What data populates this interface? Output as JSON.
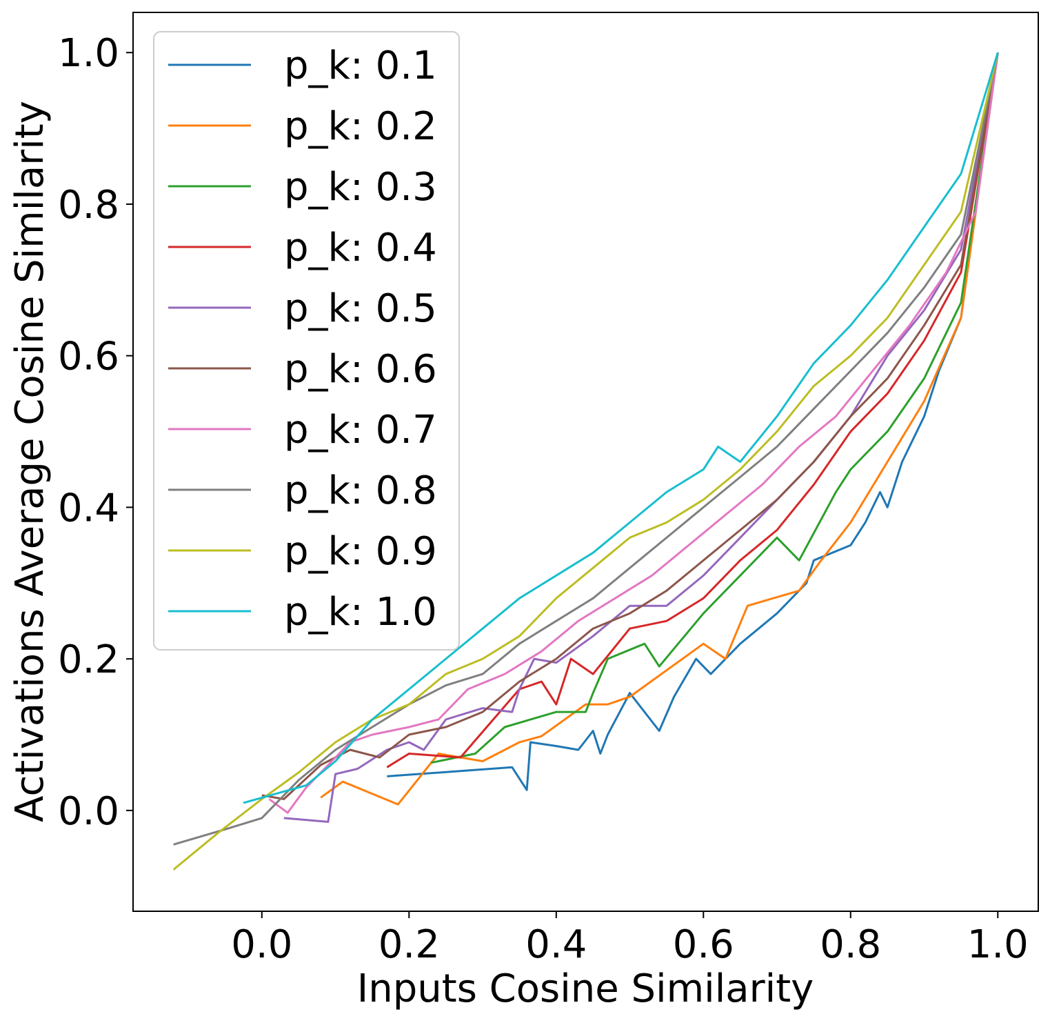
{
  "chart_data": {
    "type": "line",
    "title": "",
    "xlabel": "Inputs Cosine Similarity",
    "ylabel": "Activations Average Cosine Similarity",
    "xlim": [
      -0.175,
      1.055
    ],
    "ylim": [
      -0.133,
      1.053
    ],
    "xticks": [
      0.0,
      0.2,
      0.4,
      0.6,
      0.8,
      1.0
    ],
    "yticks": [
      0.0,
      0.2,
      0.4,
      0.6,
      0.8,
      1.0
    ],
    "xtick_labels": [
      "0.0",
      "0.2",
      "0.4",
      "0.6",
      "0.8",
      "1.0"
    ],
    "ytick_labels": [
      "0.0",
      "0.2",
      "0.4",
      "0.6",
      "0.8",
      "1.0"
    ],
    "grid": false,
    "legend_position": "top-left",
    "series": [
      {
        "name": "p_k: 0.1",
        "color": "#1f77b4",
        "x": [
          0.17,
          0.34,
          0.36,
          0.365,
          0.4,
          0.43,
          0.45,
          0.46,
          0.47,
          0.5,
          0.54,
          0.56,
          0.59,
          0.61,
          0.65,
          0.7,
          0.74,
          0.75,
          0.8,
          0.82,
          0.84,
          0.85,
          0.87,
          0.9,
          0.92,
          0.95,
          1.0
        ],
        "y": [
          0.045,
          0.057,
          0.027,
          0.09,
          0.085,
          0.08,
          0.105,
          0.075,
          0.1,
          0.155,
          0.105,
          0.15,
          0.2,
          0.18,
          0.22,
          0.26,
          0.3,
          0.33,
          0.35,
          0.38,
          0.42,
          0.4,
          0.46,
          0.52,
          0.58,
          0.65,
          1.0
        ]
      },
      {
        "name": "p_k: 0.2",
        "color": "#ff7f0e",
        "x": [
          0.08,
          0.11,
          0.185,
          0.24,
          0.3,
          0.35,
          0.38,
          0.44,
          0.47,
          0.5,
          0.6,
          0.63,
          0.66,
          0.73,
          0.76,
          0.8,
          0.85,
          0.9,
          0.95,
          1.0
        ],
        "y": [
          0.017,
          0.038,
          0.008,
          0.075,
          0.065,
          0.09,
          0.098,
          0.14,
          0.14,
          0.15,
          0.22,
          0.2,
          0.27,
          0.29,
          0.33,
          0.38,
          0.46,
          0.54,
          0.65,
          1.0
        ]
      },
      {
        "name": "p_k: 0.3",
        "color": "#2ca02c",
        "x": [
          0.23,
          0.29,
          0.33,
          0.4,
          0.44,
          0.45,
          0.47,
          0.52,
          0.54,
          0.6,
          0.65,
          0.7,
          0.73,
          0.78,
          0.8,
          0.85,
          0.9,
          0.95,
          1.0
        ],
        "y": [
          0.063,
          0.075,
          0.11,
          0.13,
          0.13,
          0.155,
          0.2,
          0.22,
          0.19,
          0.26,
          0.31,
          0.36,
          0.33,
          0.42,
          0.45,
          0.5,
          0.57,
          0.67,
          1.0
        ]
      },
      {
        "name": "p_k: 0.4",
        "color": "#d62728",
        "x": [
          0.17,
          0.2,
          0.27,
          0.35,
          0.38,
          0.4,
          0.42,
          0.45,
          0.5,
          0.55,
          0.6,
          0.65,
          0.7,
          0.75,
          0.8,
          0.85,
          0.9,
          0.95,
          1.0
        ],
        "y": [
          0.057,
          0.075,
          0.07,
          0.16,
          0.17,
          0.14,
          0.2,
          0.18,
          0.24,
          0.25,
          0.28,
          0.33,
          0.37,
          0.43,
          0.5,
          0.55,
          0.62,
          0.71,
          1.0
        ]
      },
      {
        "name": "p_k: 0.5",
        "color": "#9467bd",
        "x": [
          0.03,
          0.09,
          0.1,
          0.13,
          0.17,
          0.2,
          0.22,
          0.25,
          0.3,
          0.34,
          0.35,
          0.37,
          0.4,
          0.45,
          0.5,
          0.55,
          0.6,
          0.65,
          0.7,
          0.75,
          0.8,
          0.85,
          0.9,
          0.95,
          1.0
        ],
        "y": [
          -0.01,
          -0.015,
          0.048,
          0.055,
          0.08,
          0.09,
          0.08,
          0.12,
          0.135,
          0.13,
          0.16,
          0.2,
          0.195,
          0.23,
          0.27,
          0.27,
          0.31,
          0.36,
          0.41,
          0.46,
          0.52,
          0.6,
          0.66,
          0.74,
          1.0
        ]
      },
      {
        "name": "p_k: 0.6",
        "color": "#8c564b",
        "x": [
          0.0,
          0.03,
          0.08,
          0.12,
          0.16,
          0.2,
          0.25,
          0.3,
          0.35,
          0.4,
          0.45,
          0.5,
          0.55,
          0.6,
          0.65,
          0.7,
          0.75,
          0.8,
          0.85,
          0.9,
          0.95,
          1.0
        ],
        "y": [
          0.02,
          0.015,
          0.06,
          0.08,
          0.07,
          0.1,
          0.11,
          0.13,
          0.17,
          0.2,
          0.24,
          0.26,
          0.29,
          0.33,
          0.37,
          0.41,
          0.46,
          0.52,
          0.57,
          0.64,
          0.72,
          1.0
        ]
      },
      {
        "name": "p_k: 0.7",
        "color": "#e377c2",
        "x": [
          0.01,
          0.035,
          0.06,
          0.1,
          0.12,
          0.15,
          0.2,
          0.24,
          0.28,
          0.33,
          0.38,
          0.43,
          0.48,
          0.53,
          0.58,
          0.63,
          0.68,
          0.73,
          0.78,
          0.83,
          0.88,
          0.93,
          0.97,
          1.0
        ],
        "y": [
          0.015,
          -0.003,
          0.03,
          0.07,
          0.09,
          0.1,
          0.11,
          0.12,
          0.16,
          0.18,
          0.21,
          0.25,
          0.28,
          0.31,
          0.35,
          0.39,
          0.43,
          0.48,
          0.52,
          0.58,
          0.64,
          0.71,
          0.79,
          1.0
        ]
      },
      {
        "name": "p_k: 0.8",
        "color": "#7f7f7f",
        "x": [
          -0.12,
          -0.05,
          0.0,
          0.05,
          0.1,
          0.15,
          0.2,
          0.25,
          0.3,
          0.35,
          0.4,
          0.45,
          0.5,
          0.55,
          0.6,
          0.65,
          0.7,
          0.75,
          0.8,
          0.85,
          0.9,
          0.95,
          1.0
        ],
        "y": [
          -0.045,
          -0.025,
          -0.01,
          0.04,
          0.08,
          0.11,
          0.14,
          0.165,
          0.18,
          0.22,
          0.25,
          0.28,
          0.32,
          0.36,
          0.4,
          0.44,
          0.48,
          0.53,
          0.58,
          0.63,
          0.69,
          0.76,
          1.0
        ]
      },
      {
        "name": "p_k: 0.9",
        "color": "#bcbd22",
        "x": [
          -0.12,
          -0.06,
          0.0,
          0.05,
          0.1,
          0.15,
          0.2,
          0.25,
          0.3,
          0.35,
          0.4,
          0.45,
          0.5,
          0.55,
          0.6,
          0.65,
          0.7,
          0.75,
          0.8,
          0.85,
          0.9,
          0.95,
          1.0
        ],
        "y": [
          -0.078,
          -0.03,
          0.015,
          0.05,
          0.09,
          0.12,
          0.14,
          0.18,
          0.2,
          0.23,
          0.28,
          0.32,
          0.36,
          0.38,
          0.41,
          0.45,
          0.5,
          0.56,
          0.6,
          0.65,
          0.72,
          0.79,
          1.0
        ]
      },
      {
        "name": "p_k: 1.0",
        "color": "#17becf",
        "x": [
          -0.025,
          0.03,
          0.06,
          0.1,
          0.15,
          0.2,
          0.25,
          0.3,
          0.35,
          0.4,
          0.45,
          0.5,
          0.55,
          0.6,
          0.62,
          0.65,
          0.7,
          0.75,
          0.8,
          0.85,
          0.9,
          0.95,
          1.0
        ],
        "y": [
          0.01,
          0.025,
          0.033,
          0.065,
          0.12,
          0.16,
          0.2,
          0.24,
          0.28,
          0.31,
          0.34,
          0.38,
          0.42,
          0.45,
          0.48,
          0.46,
          0.52,
          0.59,
          0.64,
          0.7,
          0.77,
          0.84,
          1.0
        ]
      }
    ]
  }
}
